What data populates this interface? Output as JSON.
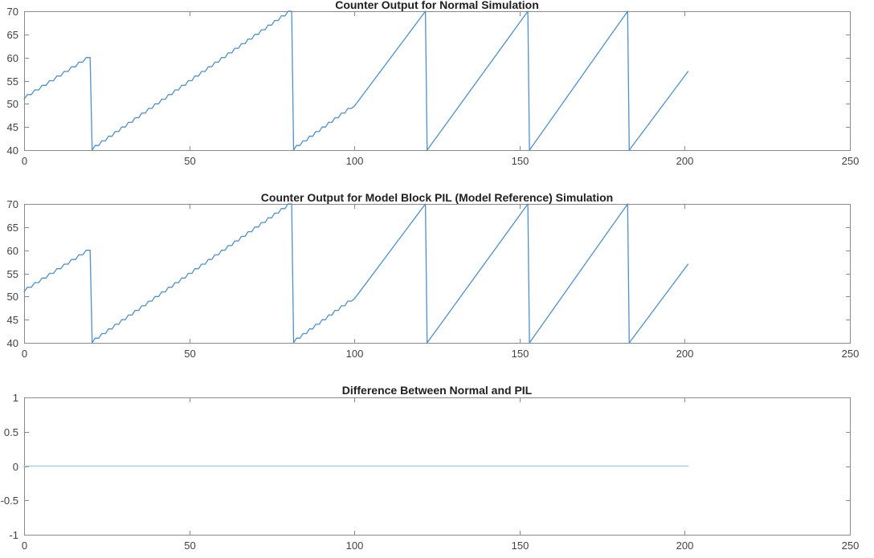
{
  "figure": {
    "background": "#ffffff",
    "axis_color": "#8a8a8a",
    "tick_label_color": "#414141",
    "title_color": "#1f1f1f"
  },
  "chart_data": [
    {
      "type": "line",
      "title": "Counter Output for Normal Simulation",
      "xlabel": "",
      "ylabel": "",
      "xlim": [
        0,
        250
      ],
      "ylim": [
        40,
        70
      ],
      "x_ticks": [
        0,
        50,
        100,
        150,
        200,
        250
      ],
      "y_ticks": [
        40,
        45,
        50,
        55,
        60,
        65,
        70
      ],
      "grid": false,
      "legend": "none",
      "line_color": "#4f8fcc",
      "line_width": 1.3,
      "series_name": "counter-output-normal",
      "segments": [
        {
          "style": "steps",
          "from": [
            0,
            51
          ],
          "to": [
            20,
            60
          ]
        },
        {
          "style": "line",
          "from": [
            20,
            60
          ],
          "to": [
            20.6,
            40
          ]
        },
        {
          "style": "steps",
          "from": [
            20.6,
            40
          ],
          "to": [
            81,
            70
          ]
        },
        {
          "style": "line",
          "from": [
            81,
            70
          ],
          "to": [
            81.6,
            40
          ]
        },
        {
          "style": "steps",
          "from": [
            81.6,
            40
          ],
          "to": [
            100,
            49.5
          ]
        },
        {
          "style": "line",
          "from": [
            100,
            49.5
          ],
          "to": [
            121.5,
            70
          ]
        },
        {
          "style": "line",
          "from": [
            121.5,
            70
          ],
          "to": [
            122,
            40
          ]
        },
        {
          "style": "line",
          "from": [
            122,
            40
          ],
          "to": [
            152.5,
            70
          ]
        },
        {
          "style": "line",
          "from": [
            152.5,
            70
          ],
          "to": [
            153,
            40
          ]
        },
        {
          "style": "line",
          "from": [
            153,
            40
          ],
          "to": [
            182.7,
            70
          ]
        },
        {
          "style": "line",
          "from": [
            182.7,
            70
          ],
          "to": [
            183.2,
            40
          ]
        },
        {
          "style": "line",
          "from": [
            183.2,
            40
          ],
          "to": [
            201,
            57
          ]
        }
      ]
    },
    {
      "type": "line",
      "title": "Counter Output for Model Block PIL (Model Reference) Simulation",
      "xlabel": "",
      "ylabel": "",
      "xlim": [
        0,
        250
      ],
      "ylim": [
        40,
        70
      ],
      "x_ticks": [
        0,
        50,
        100,
        150,
        200,
        250
      ],
      "y_ticks": [
        40,
        45,
        50,
        55,
        60,
        65,
        70
      ],
      "grid": false,
      "legend": "none",
      "line_color": "#4f8fcc",
      "line_width": 1.3,
      "series_name": "counter-output-pil",
      "segments": [
        {
          "style": "steps",
          "from": [
            0,
            51
          ],
          "to": [
            20,
            60
          ]
        },
        {
          "style": "line",
          "from": [
            20,
            60
          ],
          "to": [
            20.6,
            40
          ]
        },
        {
          "style": "steps",
          "from": [
            20.6,
            40
          ],
          "to": [
            81,
            70
          ]
        },
        {
          "style": "line",
          "from": [
            81,
            70
          ],
          "to": [
            81.6,
            40
          ]
        },
        {
          "style": "steps",
          "from": [
            81.6,
            40
          ],
          "to": [
            100,
            49.5
          ]
        },
        {
          "style": "line",
          "from": [
            100,
            49.5
          ],
          "to": [
            121.5,
            70
          ]
        },
        {
          "style": "line",
          "from": [
            121.5,
            70
          ],
          "to": [
            122,
            40
          ]
        },
        {
          "style": "line",
          "from": [
            122,
            40
          ],
          "to": [
            152.5,
            70
          ]
        },
        {
          "style": "line",
          "from": [
            152.5,
            70
          ],
          "to": [
            153,
            40
          ]
        },
        {
          "style": "line",
          "from": [
            153,
            40
          ],
          "to": [
            182.7,
            70
          ]
        },
        {
          "style": "line",
          "from": [
            182.7,
            70
          ],
          "to": [
            183.2,
            40
          ]
        },
        {
          "style": "line",
          "from": [
            183.2,
            40
          ],
          "to": [
            201,
            57
          ]
        }
      ]
    },
    {
      "type": "line",
      "title": "Difference Between Normal and PIL",
      "xlabel": "",
      "ylabel": "",
      "xlim": [
        0,
        250
      ],
      "ylim": [
        -1,
        1
      ],
      "x_ticks": [
        0,
        50,
        100,
        150,
        200,
        250
      ],
      "y_ticks": [
        -1,
        -0.5,
        0,
        0.5,
        1
      ],
      "grid": false,
      "legend": "none",
      "line_color": "#a9cce3",
      "line_width": 1.6,
      "series_name": "difference-normal-pil",
      "segments": [
        {
          "style": "line",
          "from": [
            0,
            0
          ],
          "to": [
            201,
            0
          ]
        }
      ]
    }
  ]
}
